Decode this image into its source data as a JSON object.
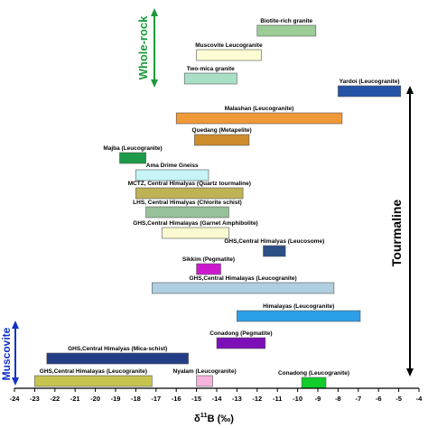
{
  "chart_data": {
    "type": "bar",
    "orientation": "horizontal-range",
    "xlabel": "δ11B (‰)",
    "xlabel_parts": {
      "prefix": "δ",
      "superscript": "11",
      "suffix": "B (‰)"
    },
    "xlim": [
      -24,
      -4
    ],
    "x_ticks": [
      "-24",
      "-23",
      "-22",
      "-21",
      "-20",
      "-19",
      "-18",
      "-17",
      "-16",
      "-15",
      "-14",
      "-13",
      "-12",
      "-11",
      "-10",
      "-9",
      "-8",
      "-7",
      "-6",
      "-5",
      "-4"
    ],
    "grid": false,
    "series": [
      {
        "label": "Biotite-rich granite",
        "x_start": -12.0,
        "x_end": -9.1,
        "color": "#9ccd98"
      },
      {
        "label": "Muscovite Leucogranite",
        "x_start": -15.0,
        "x_end": -11.8,
        "color": "#fdfbd1"
      },
      {
        "label": "Two-mica granite",
        "x_start": -15.6,
        "x_end": -13.0,
        "color": "#a9dfc5"
      },
      {
        "label": "Yardoi (Leucogranite)",
        "x_start": -8.0,
        "x_end": -4.9,
        "color": "#2554a6"
      },
      {
        "label": "Malashan (Leucogranite)",
        "x_start": -16.0,
        "x_end": -7.8,
        "color": "#f09938"
      },
      {
        "label": "Quedang (Metapelite)",
        "x_start": -15.1,
        "x_end": -12.4,
        "color": "#cf8c2c"
      },
      {
        "label": "Majba (Leucogranite)",
        "x_start": -18.8,
        "x_end": -17.5,
        "color": "#1e9b48"
      },
      {
        "label": "Ama Drime Gneiss",
        "x_start": -18.0,
        "x_end": -14.4,
        "color": "#c6f4f7"
      },
      {
        "label": "MCTZ, Central Himalyas (Quartz tourmaline)",
        "x_start": -18.0,
        "x_end": -12.7,
        "color": "#bfb255"
      },
      {
        "label": "LHS, Central Himalyas (Chlorite schist)",
        "x_start": -17.5,
        "x_end": -13.4,
        "color": "#97c29a"
      },
      {
        "label": "GHS,Central Himalayas (Garnet Amphibolite)",
        "x_start": -16.7,
        "x_end": -13.4,
        "color": "#fbf9cf"
      },
      {
        "label": "GHS,Central Himalyas (Leucosome)",
        "x_start": -11.7,
        "x_end": -10.6,
        "color": "#2b4f86"
      },
      {
        "label": "Sikkim (Pegmatite)",
        "x_start": -15.0,
        "x_end": -13.8,
        "color": "#cc18cf"
      },
      {
        "label": "GHS,Central Himalayas (Leucogranite)",
        "x_start": -17.2,
        "x_end": -8.2,
        "color": "#aecfe1"
      },
      {
        "label": "Himalayas (Leucogranite)",
        "x_start": -13.0,
        "x_end": -6.9,
        "color": "#2c9fe8"
      },
      {
        "label": "Conadong (Pegmatite)",
        "x_start": -14.0,
        "x_end": -11.6,
        "color": "#7d0fb9"
      },
      {
        "label": "GHS,Central Himalyas (Mica-schist)",
        "x_start": -22.4,
        "x_end": -15.4,
        "color": "#233e86"
      },
      {
        "label": "GHS,Central Himalayas (Leucogranite)",
        "x_start": -23.0,
        "x_end": -17.2,
        "color": "#c6c44f"
      },
      {
        "label": "Nyalam (Leucogranite)",
        "x_start": -15.0,
        "x_end": -14.2,
        "color": "#f6b3dd"
      },
      {
        "label": "Conadong (Leucogranite)",
        "x_start": -9.8,
        "x_end": -8.6,
        "color": "#11cc2b"
      }
    ],
    "annotations": [
      {
        "text": "Whole-rock",
        "color": "#1c9a3a"
      },
      {
        "text": "Tourmaline",
        "color": "#000000"
      },
      {
        "text": "Muscovite",
        "color": "#1232c8"
      }
    ]
  }
}
